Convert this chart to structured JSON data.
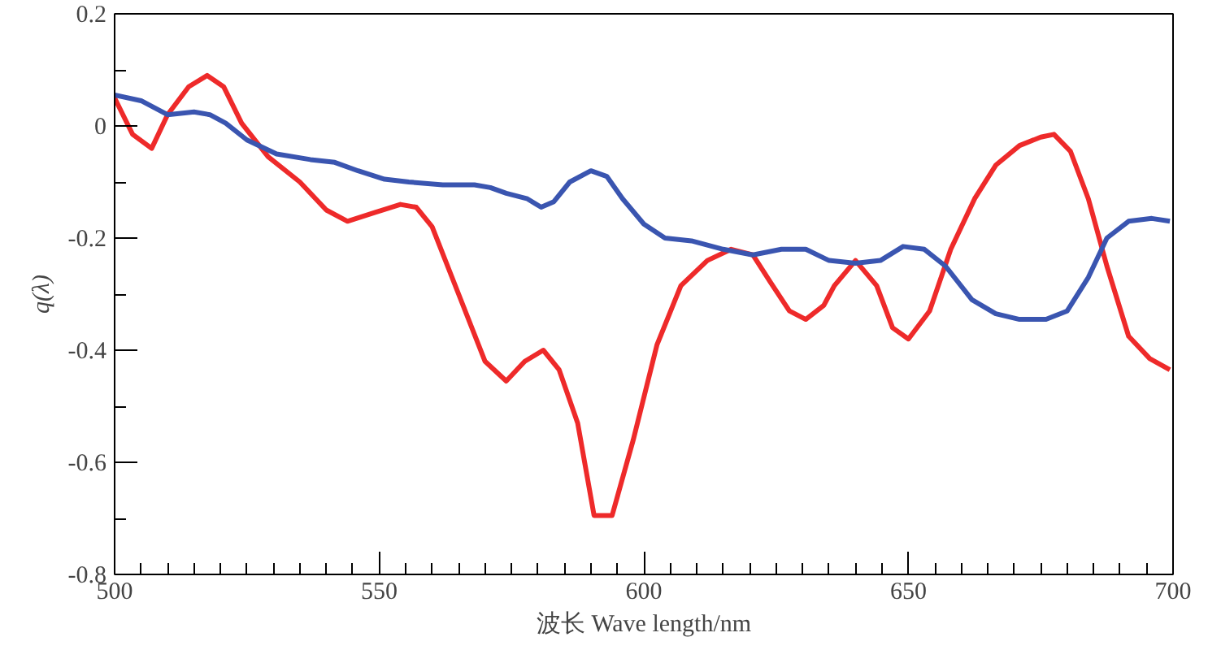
{
  "chart_data": {
    "type": "line",
    "xlabel": "波长 Wave length/nm",
    "ylabel": "q(λ)",
    "xlim": [
      500,
      700
    ],
    "ylim": [
      -0.8,
      0.2
    ],
    "xticks": [
      500,
      550,
      600,
      650,
      700
    ],
    "yticks": [
      -0.8,
      -0.6,
      -0.4,
      -0.2,
      0,
      0.2
    ],
    "grid": false,
    "marker": "none",
    "line_style": "solid",
    "series": [
      {
        "color": "#ee2a2a",
        "x": [
          500,
          503.4,
          507,
          510,
          514,
          517.5,
          520.6,
          524,
          529,
          535,
          540,
          544,
          549,
          554,
          557,
          560,
          565,
          570,
          574,
          577.5,
          581,
          584,
          587.5,
          590.6,
          594,
          598,
          602.5,
          607,
          612,
          616.5,
          620.6,
          624,
          627.5,
          630.6,
          634,
          636,
          640,
          644,
          647,
          650,
          654,
          658,
          662.5,
          666.5,
          671,
          675,
          677.5,
          680.6,
          684,
          687.5,
          691.6,
          695.6,
          699.4
        ],
        "values": [
          0.05,
          -0.015,
          -0.04,
          0.02,
          0.07,
          0.09,
          0.07,
          0.005,
          -0.055,
          -0.1,
          -0.15,
          -0.17,
          -0.155,
          -0.14,
          -0.145,
          -0.18,
          -0.3,
          -0.42,
          -0.455,
          -0.42,
          -0.4,
          -0.435,
          -0.53,
          -0.695,
          -0.695,
          -0.56,
          -0.39,
          -0.285,
          -0.24,
          -0.22,
          -0.23,
          -0.28,
          -0.33,
          -0.345,
          -0.32,
          -0.285,
          -0.24,
          -0.285,
          -0.36,
          -0.38,
          -0.33,
          -0.22,
          -0.13,
          -0.07,
          -0.035,
          -0.02,
          -0.015,
          -0.045,
          -0.13,
          -0.25,
          -0.375,
          -0.415,
          -0.435
        ]
      },
      {
        "color": "#3a55b0",
        "x": [
          500,
          505,
          510,
          515,
          518,
          521,
          525,
          530.6,
          537,
          541.6,
          546,
          551,
          555.6,
          562,
          568,
          571,
          574,
          578,
          580.6,
          583,
          586,
          590,
          593,
          596,
          600,
          604,
          609,
          615,
          620.6,
          626,
          630.6,
          635,
          640,
          644.7,
          649,
          653,
          657,
          662,
          666.5,
          671,
          676,
          680,
          684,
          687.5,
          691.6,
          696,
          699.4
        ],
        "values": [
          0.055,
          0.045,
          0.02,
          0.025,
          0.02,
          0.005,
          -0.025,
          -0.05,
          -0.06,
          -0.065,
          -0.08,
          -0.095,
          -0.1,
          -0.105,
          -0.105,
          -0.11,
          -0.12,
          -0.13,
          -0.145,
          -0.135,
          -0.1,
          -0.08,
          -0.09,
          -0.13,
          -0.175,
          -0.2,
          -0.205,
          -0.22,
          -0.23,
          -0.22,
          -0.22,
          -0.24,
          -0.245,
          -0.24,
          -0.215,
          -0.22,
          -0.25,
          -0.31,
          -0.335,
          -0.345,
          -0.345,
          -0.33,
          -0.27,
          -0.2,
          -0.17,
          -0.165,
          -0.17
        ]
      }
    ]
  }
}
